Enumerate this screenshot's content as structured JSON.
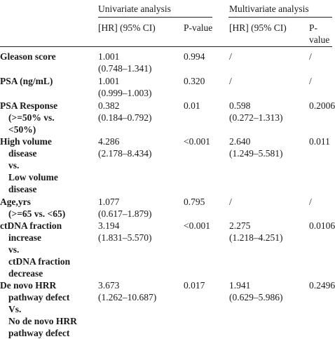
{
  "header": {
    "group_univariate": "Univariate analysis",
    "group_multivariate": "Multivariate analysis",
    "col_hr_uni": "[HR] (95% CI)",
    "col_p_uni": "P-value",
    "col_hr_multi": "[HR] (95% CI)",
    "col_p_multi_line1": "P-",
    "col_p_multi_line2": "value"
  },
  "rows": [
    {
      "label": [
        "Gleason score"
      ],
      "hr_uni": "1.001",
      "ci_uni": "(0.748–1.341)",
      "p_uni": "0.994",
      "hr_multi": "/",
      "ci_multi": "",
      "p_multi": "/"
    },
    {
      "label": [
        "PSA (ng/mL)"
      ],
      "hr_uni": "1.001",
      "ci_uni": "(0.999–1.003)",
      "p_uni": "0.320",
      "hr_multi": "/",
      "ci_multi": "",
      "p_multi": "/"
    },
    {
      "label": [
        "PSA Response",
        "(>=50% vs.",
        "<50%)"
      ],
      "hr_uni": "0.382",
      "ci_uni": "(0.184–0.792)",
      "p_uni": "0.01",
      "hr_multi": "0.598",
      "ci_multi": "(0.272–1.313)",
      "p_multi": "0.2006"
    },
    {
      "label": [
        "High volume",
        "disease",
        "vs.",
        "Low volume",
        "disease"
      ],
      "hr_uni": "4.286",
      "ci_uni": "(2.178–8.434)",
      "p_uni": "<0.001",
      "hr_multi": "2.640",
      "ci_multi": "(1.249–5.581)",
      "p_multi": "0.011"
    },
    {
      "label": [
        "Age,yrs",
        "(>=65 vs. <65)"
      ],
      "hr_uni": "1.077",
      "ci_uni": "(0.617–1.879)",
      "p_uni": "0.795",
      "hr_multi": "/",
      "ci_multi": "",
      "p_multi": "/"
    },
    {
      "label": [
        "ctDNA fraction",
        "increase",
        "vs.",
        "ctDNA fraction",
        "decrease"
      ],
      "hr_uni": "3.194",
      "ci_uni": "(1.831–5.570)",
      "p_uni": "<0.001",
      "hr_multi": "2.275",
      "ci_multi": "(1.218–4.251)",
      "p_multi": "0.0106"
    },
    {
      "label": [
        "De novo HRR",
        "pathway defect",
        "Vs.",
        "No de novo HRR",
        "pathway defect"
      ],
      "hr_uni": "3.673",
      "ci_uni": "(1.262–10.687)",
      "p_uni": "0.017",
      "hr_multi": "1.941",
      "ci_multi": "(0.629–5.986)",
      "p_multi": "0.2496"
    }
  ]
}
